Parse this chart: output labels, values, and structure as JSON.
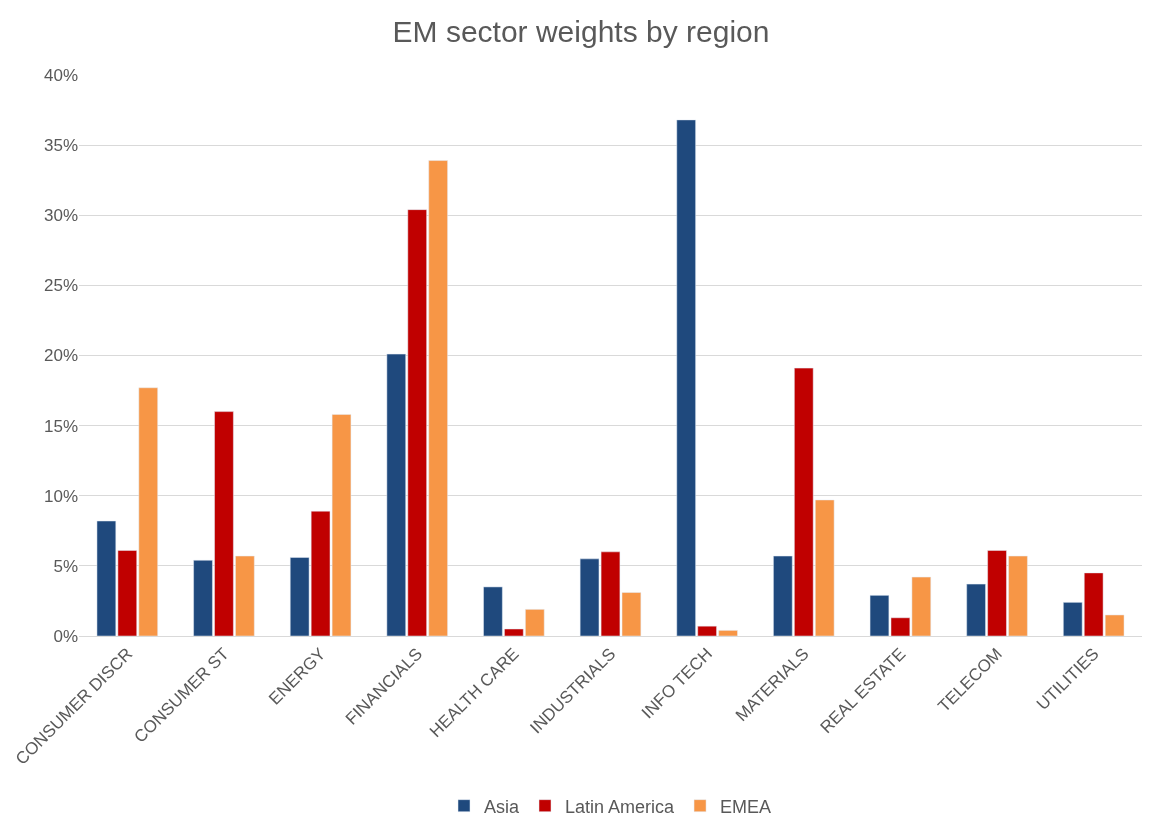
{
  "chart_data": {
    "type": "bar",
    "title": "EM sector weights by region",
    "categories": [
      "CONSUMER DISCR",
      "CONSUMER ST",
      "ENERGY",
      "FINANCIALS",
      "HEALTH CARE",
      "INDUSTRIALS",
      "INFO TECH",
      "MATERIALS",
      "REAL ESTATE",
      "TELECOM",
      "UTILITIES"
    ],
    "series": [
      {
        "name": "Asia",
        "color": "#1f497d",
        "values": [
          8.2,
          5.4,
          5.6,
          20.1,
          3.5,
          5.5,
          36.8,
          5.7,
          2.9,
          3.7,
          2.4
        ]
      },
      {
        "name": "Latin America",
        "color": "#c00000",
        "values": [
          6.1,
          16.0,
          8.9,
          30.4,
          0.5,
          6.0,
          0.7,
          19.1,
          1.3,
          6.1,
          4.5
        ]
      },
      {
        "name": "EMEA",
        "color": "#f79646",
        "values": [
          17.7,
          5.7,
          15.8,
          33.9,
          1.9,
          3.1,
          0.4,
          9.7,
          4.2,
          5.7,
          1.5
        ]
      }
    ],
    "ylim": [
      0,
      40
    ],
    "yticks": [
      {
        "value": 0,
        "label": "0%"
      },
      {
        "value": 5,
        "label": "5%"
      },
      {
        "value": 10,
        "label": "10%"
      },
      {
        "value": 15,
        "label": "15%"
      },
      {
        "value": 20,
        "label": "20%"
      },
      {
        "value": 25,
        "label": "25%"
      },
      {
        "value": 30,
        "label": "30%"
      },
      {
        "value": 35,
        "label": "35%"
      },
      {
        "value": 40,
        "label": "40%"
      }
    ],
    "grid": "y",
    "legend": "bottom"
  }
}
